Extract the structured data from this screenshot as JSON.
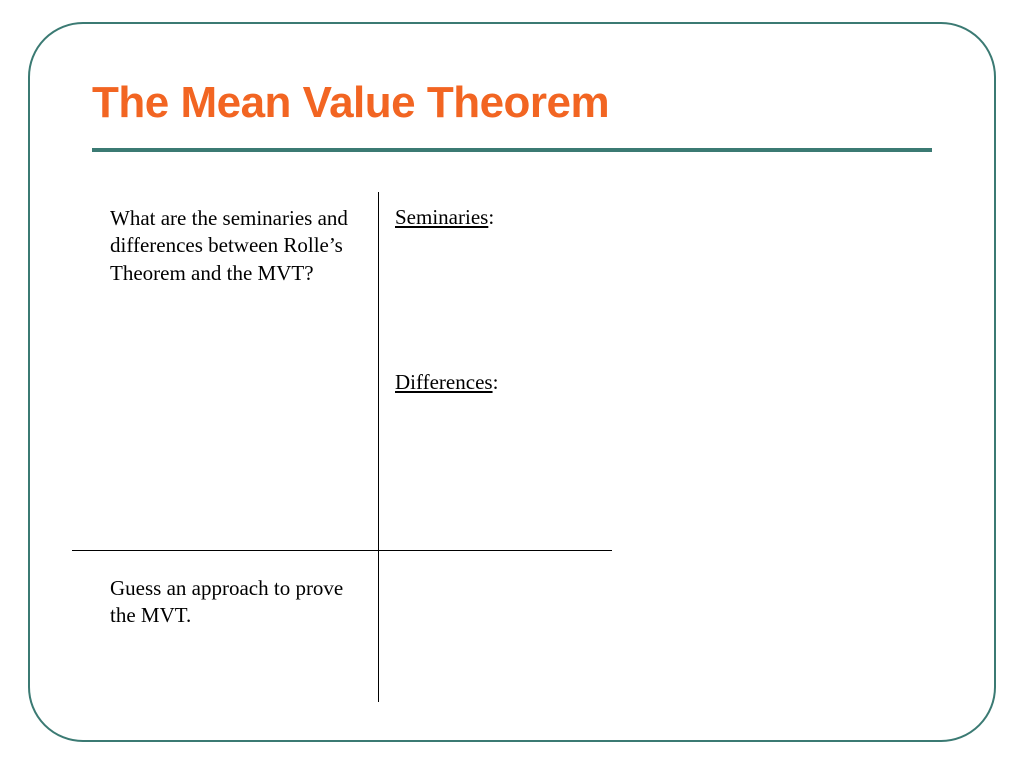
{
  "colors": {
    "frame_border": "#3b7a73",
    "title": "#f26522",
    "underline": "#3b7a73",
    "text": "#000000"
  },
  "title": "The Mean Value Theorem",
  "table": {
    "q1": "What are the seminaries and differences between Rolle’s Theorem and the MVT?",
    "q2": "Guess an approach to prove the MVT.",
    "label_seminaries": "Seminaries",
    "label_differences": "Differences"
  }
}
